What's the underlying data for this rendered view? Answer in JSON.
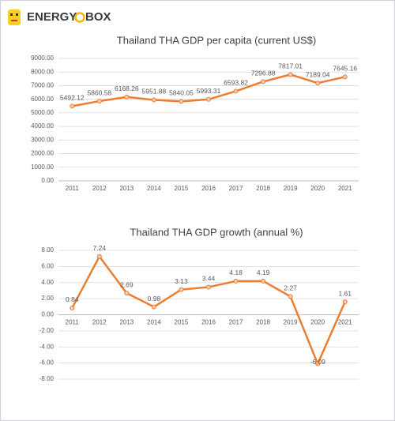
{
  "logo": {
    "left": "ENERGY",
    "right": "BOX"
  },
  "chart_data": [
    {
      "type": "line",
      "title": "Thailand THA GDP per capita (current US$)",
      "categories": [
        "2011",
        "2012",
        "2013",
        "2014",
        "2015",
        "2016",
        "2017",
        "2018",
        "2019",
        "2020",
        "2021"
      ],
      "values": [
        5492.12,
        5860.58,
        6168.26,
        5951.88,
        5840.05,
        5993.31,
        6593.82,
        7296.88,
        7817.01,
        7189.04,
        7645.16
      ],
      "color": "#ed7d31",
      "ylim": [
        0,
        9000
      ],
      "yticks": [
        {
          "value": 0,
          "label": "0.00"
        },
        {
          "value": 1000,
          "label": "1000.00"
        },
        {
          "value": 2000,
          "label": "2000.00"
        },
        {
          "value": 3000,
          "label": "3000.00"
        },
        {
          "value": 4000,
          "label": "4000.00"
        },
        {
          "value": 5000,
          "label": "5000.00"
        },
        {
          "value": 6000,
          "label": "6000.00"
        },
        {
          "value": 7000,
          "label": "7000.00"
        },
        {
          "value": 8000,
          "label": "8000.00"
        },
        {
          "value": 9000,
          "label": "9000.00"
        }
      ],
      "grid": true
    },
    {
      "type": "line",
      "title": "Thailand THA GDP growth (annual %)",
      "categories": [
        "2011",
        "2012",
        "2013",
        "2014",
        "2015",
        "2016",
        "2017",
        "2018",
        "2019",
        "2020",
        "2021"
      ],
      "values": [
        0.84,
        7.24,
        2.69,
        0.98,
        3.13,
        3.44,
        4.18,
        4.19,
        2.27,
        -6.09,
        1.61
      ],
      "color": "#ed7d31",
      "ylim": [
        -8,
        8
      ],
      "yticks": [
        {
          "value": -8,
          "label": "-8.00"
        },
        {
          "value": -6,
          "label": "-6.00"
        },
        {
          "value": -4,
          "label": "-4.00"
        },
        {
          "value": -2,
          "label": "-2.00"
        },
        {
          "value": 0,
          "label": "0.00"
        },
        {
          "value": 2,
          "label": "2.00"
        },
        {
          "value": 4,
          "label": "4.00"
        },
        {
          "value": 6,
          "label": "6.00"
        },
        {
          "value": 8,
          "label": "8.00"
        }
      ],
      "grid": true
    }
  ]
}
